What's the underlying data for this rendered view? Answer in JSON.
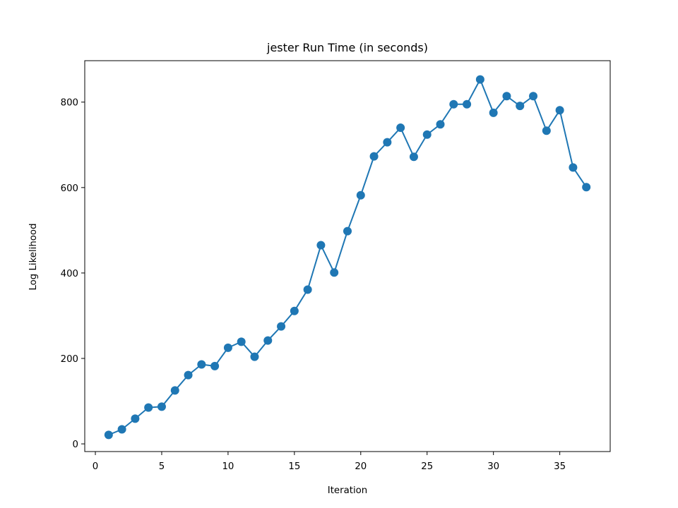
{
  "chart_data": {
    "type": "line",
    "title": "jester Run Time (in seconds)",
    "xlabel": "Iteration",
    "ylabel": "Log Likelihood",
    "xlim": [
      -0.8,
      38.8
    ],
    "ylim": [
      -18,
      897
    ],
    "xticks": [
      0,
      5,
      10,
      15,
      20,
      25,
      30,
      35
    ],
    "yticks": [
      0,
      200,
      400,
      600,
      800
    ],
    "grid": false,
    "colors": {
      "series": "#1f77b4",
      "axes": "#000000",
      "background": "#ffffff"
    },
    "series": [
      {
        "marker": "circle",
        "x": [
          1,
          2,
          3,
          4,
          5,
          6,
          7,
          8,
          9,
          10,
          11,
          12,
          13,
          14,
          15,
          16,
          17,
          18,
          19,
          20,
          21,
          22,
          23,
          24,
          25,
          26,
          27,
          28,
          29,
          30,
          31,
          32,
          33,
          34,
          35,
          36,
          37
        ],
        "y": [
          21,
          34,
          59,
          85,
          87,
          125,
          161,
          186,
          182,
          225,
          239,
          204,
          242,
          275,
          311,
          361,
          465,
          401,
          498,
          582,
          673,
          706,
          740,
          672,
          724,
          748,
          795,
          795,
          853,
          775,
          814,
          791,
          814,
          733,
          781,
          647,
          601
        ]
      }
    ]
  }
}
